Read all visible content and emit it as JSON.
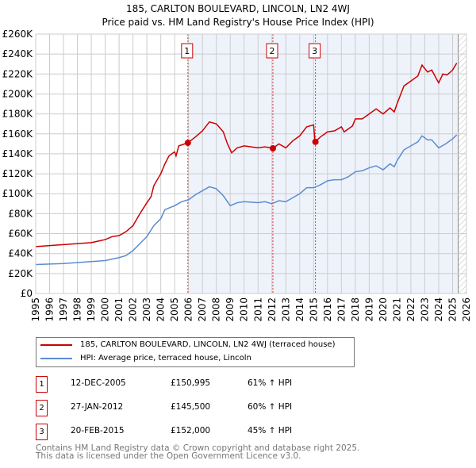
{
  "chart_data": {
    "type": "line",
    "title": "185, CARLTON BOULEVARD, LINCOLN, LN2 4WJ",
    "subtitle": "Price paid vs. HM Land Registry's House Price Index (HPI)",
    "xlim": [
      1995,
      2026
    ],
    "ylim": [
      0,
      260000
    ],
    "ytick_labels": [
      "£0",
      "£20K",
      "£40K",
      "£60K",
      "£80K",
      "£100K",
      "£120K",
      "£140K",
      "£160K",
      "£180K",
      "£200K",
      "£220K",
      "£240K",
      "£260K"
    ],
    "xtick_labels": [
      "1995",
      "1996",
      "1997",
      "1998",
      "1999",
      "2000",
      "2001",
      "2002",
      "2003",
      "2004",
      "2005",
      "2006",
      "2007",
      "2008",
      "2009",
      "2010",
      "2011",
      "2012",
      "2013",
      "2014",
      "2015",
      "2016",
      "2017",
      "2018",
      "2019",
      "2020",
      "2021",
      "2022",
      "2023",
      "2024",
      "2025",
      "2026"
    ],
    "grid": true,
    "series": [
      {
        "name": "185, CARLTON BOULEVARD, LINCOLN, LN2 4WJ (terraced house)",
        "color": "#cc0000",
        "x": [
          1995,
          1996,
          1997,
          1998,
          1999,
          2000,
          2000.5,
          2001,
          2001.5,
          2002,
          2002.5,
          2003,
          2003.3,
          2003.5,
          2004,
          2004.3,
          2004.6,
          2005,
          2005.1,
          2005.3,
          2005.95,
          2006.5,
          2007,
          2007.5,
          2008,
          2008.5,
          2008.8,
          2009.1,
          2009.5,
          2010,
          2010.5,
          2011,
          2011.5,
          2012.07,
          2012.5,
          2013,
          2013.5,
          2014,
          2014.5,
          2015,
          2015.1,
          2015.5,
          2016,
          2016.5,
          2017,
          2017.2,
          2017.8,
          2018,
          2018.5,
          2019,
          2019.5,
          2020,
          2020.5,
          2020.8,
          2021,
          2021.5,
          2022,
          2022.5,
          2022.8,
          2023.2,
          2023.5,
          2024,
          2024.3,
          2024.6,
          2025,
          2025.3
        ],
        "y": [
          47,
          48,
          49,
          50,
          51,
          54,
          57,
          58,
          62,
          68,
          80,
          91,
          97,
          108,
          120,
          130,
          138,
          142,
          138,
          148,
          151,
          157,
          163,
          172,
          170,
          162,
          150,
          141,
          146,
          148,
          147,
          146,
          147,
          145.5,
          150,
          146,
          153,
          158,
          167,
          169,
          152,
          157,
          162,
          163,
          167,
          162,
          168,
          175,
          175,
          180,
          185,
          180,
          186,
          182,
          190,
          208,
          213,
          218,
          229,
          222,
          224,
          211,
          220,
          219,
          224,
          231
        ]
      },
      {
        "name": "HPI: Average price, terraced house, Lincoln",
        "color": "#5b8ccf",
        "x": [
          1995,
          1997,
          1999,
          2000,
          2001,
          2001.5,
          2002,
          2002.5,
          2003,
          2003.5,
          2004,
          2004.3,
          2005,
          2005.5,
          2006,
          2006.5,
          2007,
          2007.5,
          2008,
          2008.5,
          2009,
          2009.5,
          2010,
          2011,
          2011.5,
          2012,
          2012.5,
          2013,
          2013.5,
          2014,
          2014.5,
          2015,
          2015.5,
          2016,
          2016.5,
          2017,
          2017.5,
          2018,
          2018.5,
          2019,
          2019.5,
          2020,
          2020.5,
          2020.8,
          2021,
          2021.5,
          2022,
          2022.5,
          2022.8,
          2023.2,
          2023.5,
          2024,
          2024.5,
          2025,
          2025.3
        ],
        "y": [
          29,
          30,
          32,
          33,
          36,
          38,
          43,
          50,
          57,
          68,
          75,
          84,
          88,
          92,
          94,
          99,
          103,
          107,
          105,
          98,
          88,
          91,
          92,
          91,
          92,
          90,
          93,
          92,
          96,
          100,
          106,
          106,
          109,
          113,
          114,
          114,
          117,
          122,
          123,
          126,
          128,
          124,
          130,
          127,
          133,
          144,
          148,
          152,
          158,
          154,
          154,
          146,
          150,
          155,
          159
        ]
      }
    ],
    "y_units": "thousands GBP",
    "sales": [
      {
        "label": "1",
        "x": 2005.95,
        "y": 150.995,
        "date": "12-DEC-2005",
        "price": "£150,995",
        "hpi": "61% ↑ HPI"
      },
      {
        "label": "2",
        "x": 2012.07,
        "y": 145.5,
        "date": "27-JAN-2012",
        "price": "£145,500",
        "hpi": "60% ↑ HPI"
      },
      {
        "label": "3",
        "x": 2015.13,
        "y": 152.0,
        "date": "20-FEB-2015",
        "price": "£152,000",
        "hpi": "45% ↑ HPI"
      }
    ],
    "hatch_from": 2025.4,
    "legend_position": "below"
  },
  "footer": [
    "Contains HM Land Registry data © Crown copyright and database right 2025.",
    "This data is licensed under the Open Government Licence v3.0."
  ]
}
